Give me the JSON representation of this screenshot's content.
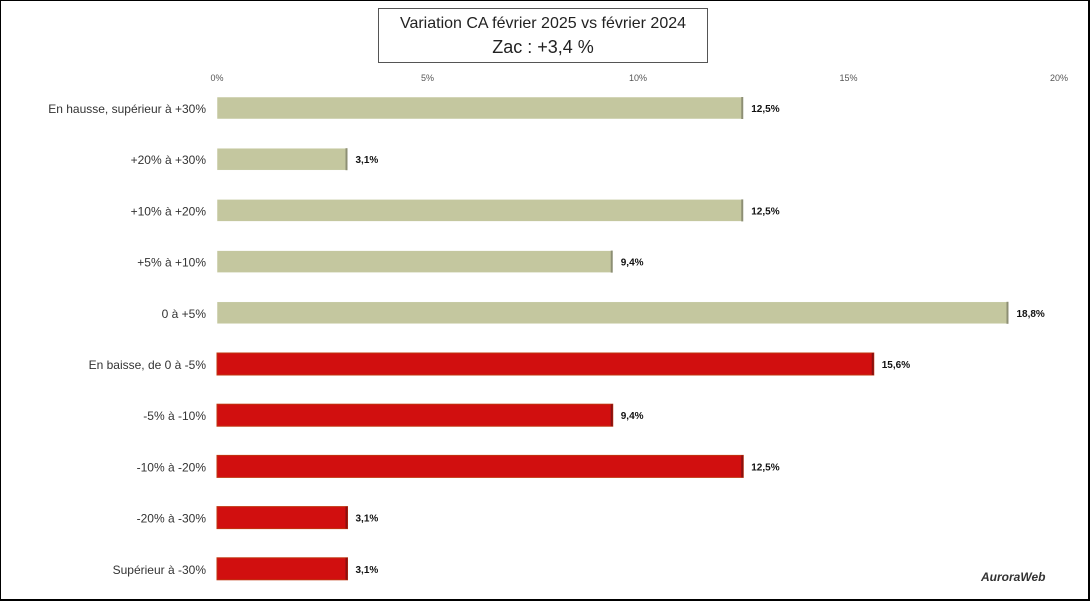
{
  "chart_data": {
    "type": "bar",
    "orientation": "horizontal",
    "title": "Variation CA février 2025 vs février 2024",
    "subtitle": "Zac : +3,4 %",
    "xlim": [
      0,
      20
    ],
    "ticks": [
      0,
      5,
      10,
      15,
      20
    ],
    "tick_labels": [
      "0%",
      "5%",
      "10%",
      "15%",
      "20%"
    ],
    "grid": false,
    "legend": "none",
    "categories": [
      "En hausse, supérieur à +30%",
      "+20% à +30%",
      "+10% à +20%",
      "+5% à +10%",
      "0 à +5%",
      "En baisse, de 0 à -5%",
      "-5% à -10%",
      "-10% à -20%",
      "-20% à -30%",
      "Supérieur à -30%"
    ],
    "values": [
      12.5,
      3.1,
      12.5,
      9.4,
      18.8,
      15.6,
      9.4,
      12.5,
      3.1,
      3.1
    ],
    "value_labels": [
      "12,5%",
      "3,1%",
      "12,5%",
      "9,4%",
      "18,8%",
      "15,6%",
      "9,4%",
      "12,5%",
      "3,1%",
      "3,1%"
    ],
    "colors": {
      "hausse": "#c4c79f",
      "baisse": "#d10f0f",
      "baisse_edge": "#c0340f"
    },
    "color_groups": [
      "hausse",
      "hausse",
      "hausse",
      "hausse",
      "hausse",
      "baisse",
      "baisse",
      "baisse",
      "baisse",
      "baisse"
    ]
  },
  "logo_text": "AuroraWeb"
}
